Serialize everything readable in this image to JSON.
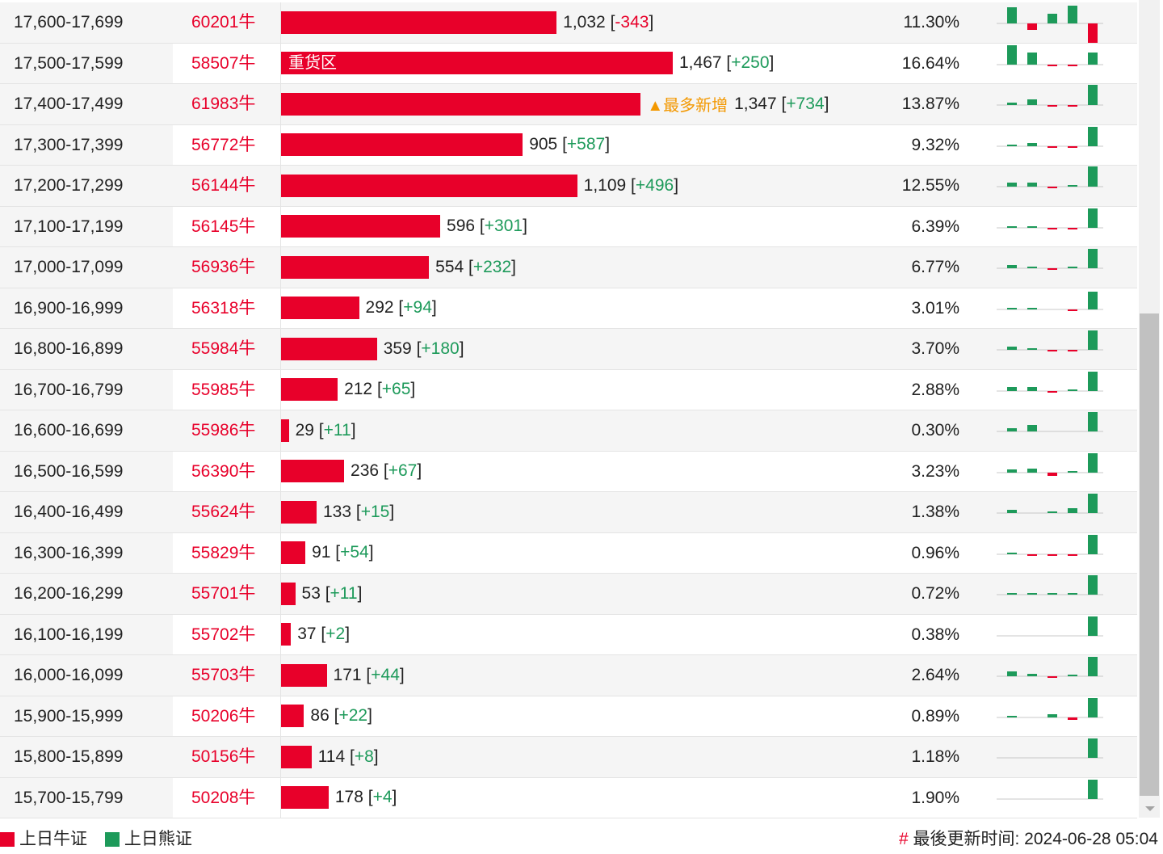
{
  "colors": {
    "bull": "#e8002a",
    "bear": "#1d9a5a",
    "note": "#f39800"
  },
  "rows": [
    {
      "range": "17,600-17,699",
      "code": "60201牛",
      "count": 1032,
      "count_label": "1,032",
      "delta": "-343",
      "pct": "11.30%",
      "spark": [
        20,
        -8,
        12,
        22,
        -24
      ]
    },
    {
      "range": "17,500-17,599",
      "code": "58507牛",
      "count": 1467,
      "count_label": "1,467",
      "delta": "+250",
      "pct": "16.64%",
      "bar_text": "重货区",
      "spark": [
        24,
        15,
        -2,
        -2,
        15
      ]
    },
    {
      "range": "17,400-17,499",
      "code": "61983牛",
      "count": 1347,
      "count_label": "1,347",
      "delta": "+734",
      "pct": "13.87%",
      "note": "▲最多新增",
      "spark": [
        3,
        7,
        -2,
        -2,
        25
      ]
    },
    {
      "range": "17,300-17,399",
      "code": "56772牛",
      "count": 905,
      "count_label": "905",
      "delta": "+587",
      "pct": "9.32%",
      "spark": [
        1,
        4,
        -2,
        -2,
        24
      ]
    },
    {
      "range": "17,200-17,299",
      "code": "56144牛",
      "count": 1109,
      "count_label": "1,109",
      "delta": "+496",
      "pct": "12.55%",
      "spark": [
        5,
        5,
        -2,
        2,
        25
      ]
    },
    {
      "range": "17,100-17,199",
      "code": "56145牛",
      "count": 596,
      "count_label": "596",
      "delta": "+301",
      "pct": "6.39%",
      "spark": [
        2,
        1,
        -2,
        -2,
        24
      ]
    },
    {
      "range": "17,000-17,099",
      "code": "56936牛",
      "count": 554,
      "count_label": "554",
      "delta": "+232",
      "pct": "6.77%",
      "spark": [
        4,
        2,
        -1,
        1,
        24
      ]
    },
    {
      "range": "16,900-16,999",
      "code": "56318牛",
      "count": 292,
      "count_label": "292",
      "delta": "+94",
      "pct": "3.01%",
      "spark": [
        2,
        1,
        0,
        -1,
        22
      ]
    },
    {
      "range": "16,800-16,899",
      "code": "55984牛",
      "count": 359,
      "count_label": "359",
      "delta": "+180",
      "pct": "3.70%",
      "spark": [
        4,
        2,
        -1,
        -1,
        24
      ]
    },
    {
      "range": "16,700-16,799",
      "code": "55985牛",
      "count": 212,
      "count_label": "212",
      "delta": "+65",
      "pct": "2.88%",
      "spark": [
        5,
        5,
        -1,
        1,
        24
      ]
    },
    {
      "range": "16,600-16,699",
      "code": "55986牛",
      "count": 29,
      "count_label": "29",
      "delta": "+11",
      "pct": "0.30%",
      "spark": [
        4,
        8,
        0,
        0,
        24
      ]
    },
    {
      "range": "16,500-16,599",
      "code": "56390牛",
      "count": 236,
      "count_label": "236",
      "delta": "+67",
      "pct": "3.23%",
      "spark": [
        4,
        5,
        -4,
        1,
        24
      ]
    },
    {
      "range": "16,400-16,499",
      "code": "55624牛",
      "count": 133,
      "count_label": "133",
      "delta": "+15",
      "pct": "1.38%",
      "spark": [
        4,
        0,
        2,
        6,
        24
      ]
    },
    {
      "range": "16,300-16,399",
      "code": "55829牛",
      "count": 91,
      "count_label": "91",
      "delta": "+54",
      "pct": "0.96%",
      "spark": [
        1,
        -1,
        -1,
        -1,
        24
      ]
    },
    {
      "range": "16,200-16,299",
      "code": "55701牛",
      "count": 53,
      "count_label": "53",
      "delta": "+11",
      "pct": "0.72%",
      "spark": [
        2,
        2,
        2,
        1,
        24
      ]
    },
    {
      "range": "16,100-16,199",
      "code": "55702牛",
      "count": 37,
      "count_label": "37",
      "delta": "+2",
      "pct": "0.38%",
      "spark": [
        0,
        0,
        0,
        0,
        24
      ]
    },
    {
      "range": "16,000-16,099",
      "code": "55703牛",
      "count": 171,
      "count_label": "171",
      "delta": "+44",
      "pct": "2.64%",
      "spark": [
        6,
        3,
        -2,
        1,
        24
      ]
    },
    {
      "range": "15,900-15,999",
      "code": "50206牛",
      "count": 86,
      "count_label": "86",
      "delta": "+22",
      "pct": "0.89%",
      "spark": [
        1,
        0,
        4,
        -3,
        24
      ]
    },
    {
      "range": "15,800-15,899",
      "code": "50156牛",
      "count": 114,
      "count_label": "114",
      "delta": "+8",
      "pct": "1.18%",
      "spark": [
        0,
        0,
        0,
        0,
        24
      ]
    },
    {
      "range": "15,700-15,799",
      "code": "50208牛",
      "count": 178,
      "count_label": "178",
      "delta": "+4",
      "pct": "1.90%",
      "spark": [
        0,
        0,
        0,
        0,
        24
      ]
    }
  ],
  "legend": {
    "bull": "上日牛证",
    "bear": "上日熊证"
  },
  "footer": {
    "hash": "#",
    "updated": "最後更新时间: 2024-06-28 05:04"
  }
}
